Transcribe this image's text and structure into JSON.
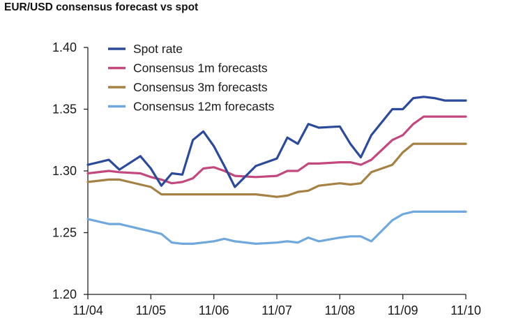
{
  "chart_data": {
    "type": "line",
    "title": "EUR/USD consensus forecast vs spot",
    "xlabel": "",
    "ylabel": "",
    "ylim": [
      1.2,
      1.4
    ],
    "yticks": [
      "1.40",
      "1.35",
      "1.30",
      "1.25",
      "1.20"
    ],
    "ytick_values": [
      1.4,
      1.35,
      1.3,
      1.25,
      1.2
    ],
    "xticks": [
      "11/04",
      "11/05",
      "11/06",
      "11/07",
      "11/08",
      "11/09",
      "11/10"
    ],
    "xtick_positions": [
      0,
      6,
      12,
      18,
      24,
      30,
      36
    ],
    "x_count": 37,
    "grid": false,
    "legend": "top-left",
    "series": [
      {
        "name": "Spot rate",
        "color": "#2b4a9b",
        "x": [
          0,
          2,
          3,
          5,
          6,
          7,
          8,
          9,
          10,
          11,
          12,
          13,
          14,
          16,
          18,
          19,
          20,
          21,
          22,
          24,
          25,
          26,
          27,
          29,
          30,
          31,
          32,
          33,
          34,
          35,
          36
        ],
        "y": [
          1.305,
          1.309,
          1.301,
          1.312,
          1.302,
          1.288,
          1.298,
          1.297,
          1.325,
          1.332,
          1.32,
          1.304,
          1.287,
          1.304,
          1.31,
          1.327,
          1.322,
          1.338,
          1.335,
          1.336,
          1.322,
          1.311,
          1.329,
          1.35,
          1.35,
          1.359,
          1.36,
          1.359,
          1.357,
          1.357,
          1.357
        ]
      },
      {
        "name": "Consensus 1m forecasts",
        "color": "#c2487e",
        "x": [
          0,
          2,
          3,
          5,
          6,
          7,
          8,
          9,
          10,
          11,
          12,
          13,
          14,
          16,
          18,
          19,
          20,
          21,
          22,
          24,
          25,
          26,
          27,
          29,
          30,
          31,
          32,
          33,
          34,
          35,
          36
        ],
        "y": [
          1.298,
          1.3,
          1.299,
          1.298,
          1.295,
          1.293,
          1.29,
          1.291,
          1.294,
          1.302,
          1.303,
          1.3,
          1.296,
          1.295,
          1.296,
          1.3,
          1.3,
          1.306,
          1.306,
          1.307,
          1.307,
          1.305,
          1.309,
          1.325,
          1.329,
          1.338,
          1.344,
          1.344,
          1.344,
          1.344,
          1.344
        ]
      },
      {
        "name": "Consensus 3m forecasts",
        "color": "#a58143",
        "x": [
          0,
          2,
          3,
          5,
          6,
          7,
          8,
          9,
          10,
          11,
          12,
          13,
          14,
          16,
          18,
          19,
          20,
          21,
          22,
          24,
          25,
          26,
          27,
          29,
          30,
          31,
          32,
          33,
          34,
          35,
          36
        ],
        "y": [
          1.291,
          1.293,
          1.293,
          1.289,
          1.287,
          1.281,
          1.281,
          1.281,
          1.281,
          1.281,
          1.281,
          1.281,
          1.281,
          1.281,
          1.279,
          1.28,
          1.283,
          1.284,
          1.288,
          1.29,
          1.289,
          1.29,
          1.299,
          1.305,
          1.315,
          1.322,
          1.322,
          1.322,
          1.322,
          1.322,
          1.322
        ]
      },
      {
        "name": "Consensus 12m forecasts",
        "color": "#6fa8dc",
        "x": [
          0,
          2,
          3,
          5,
          6,
          7,
          8,
          9,
          10,
          11,
          12,
          13,
          14,
          16,
          18,
          19,
          20,
          21,
          22,
          24,
          25,
          26,
          27,
          29,
          30,
          31,
          32,
          33,
          34,
          35,
          36
        ],
        "y": [
          1.261,
          1.257,
          1.257,
          1.253,
          1.251,
          1.249,
          1.242,
          1.241,
          1.241,
          1.242,
          1.243,
          1.245,
          1.243,
          1.241,
          1.242,
          1.243,
          1.242,
          1.246,
          1.243,
          1.246,
          1.247,
          1.247,
          1.243,
          1.26,
          1.265,
          1.267,
          1.267,
          1.267,
          1.267,
          1.267,
          1.267
        ]
      }
    ]
  }
}
